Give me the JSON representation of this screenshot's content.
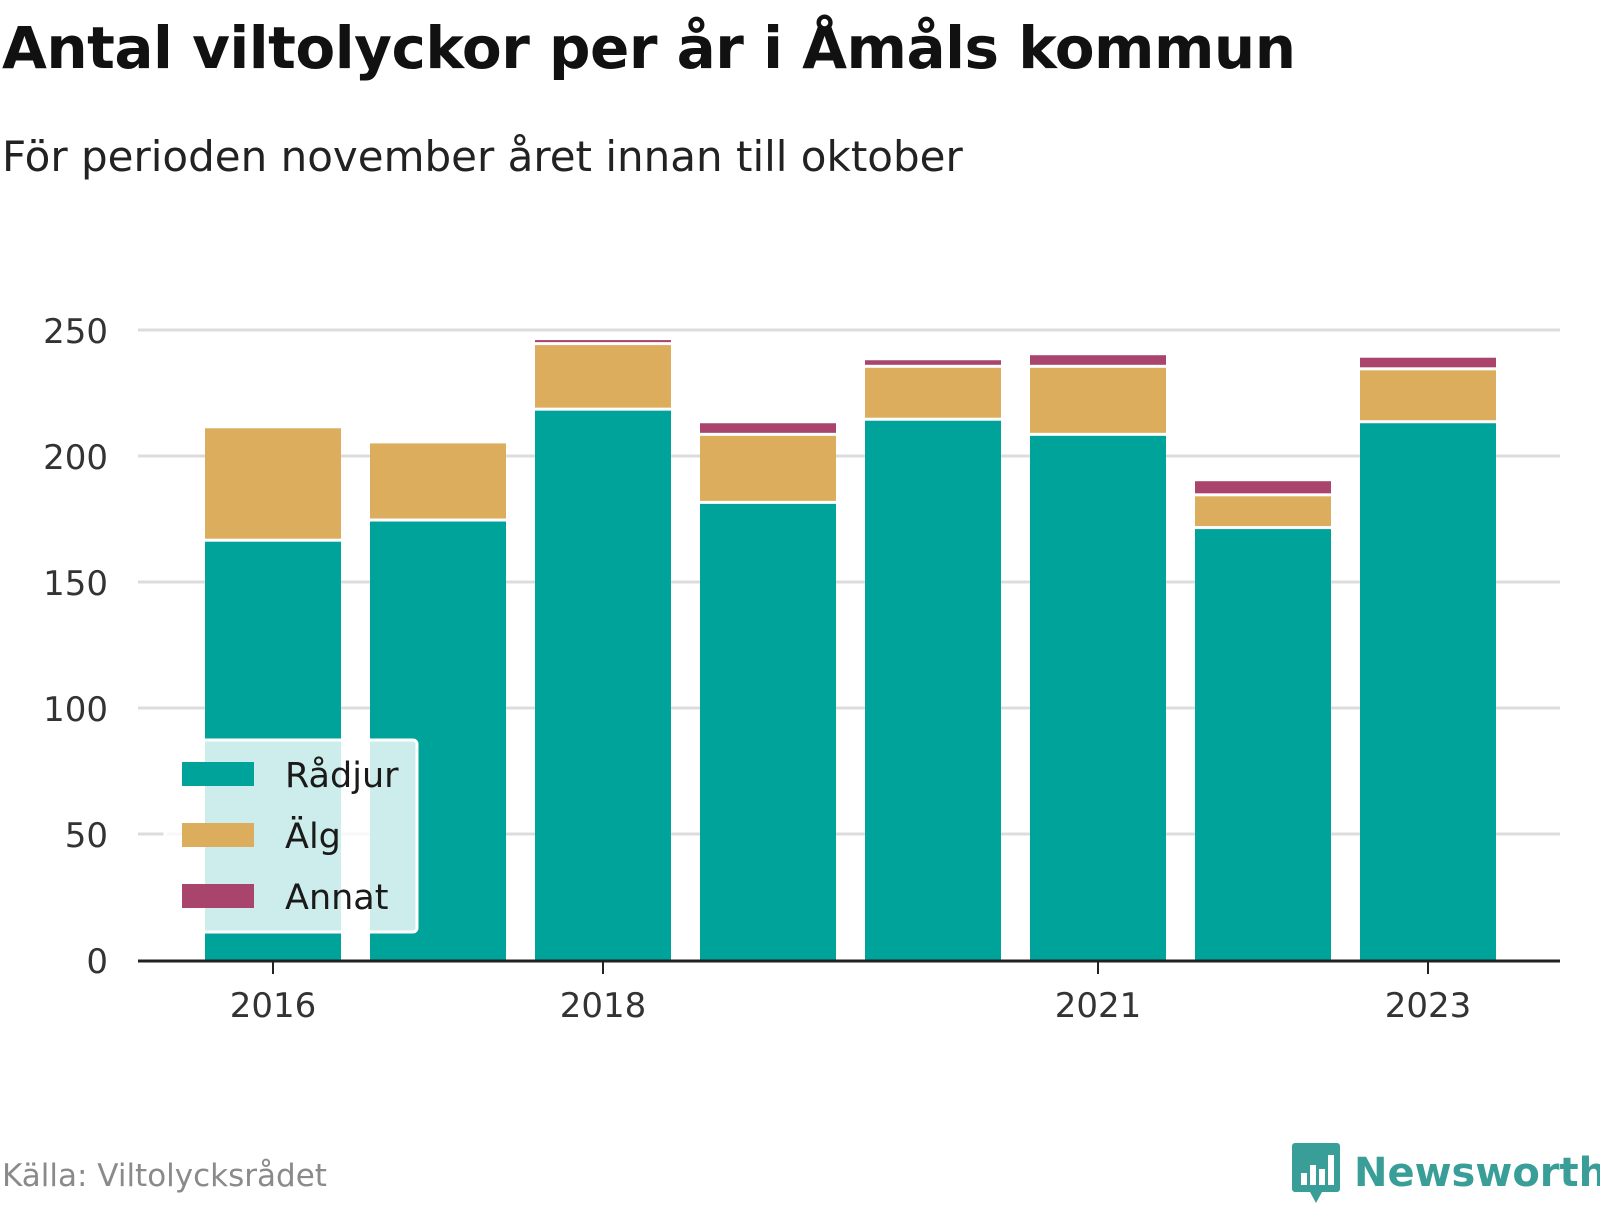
{
  "title": "Antal viltolyckor per år i Åmåls kommun",
  "subtitle": "För perioden november året innan till oktober",
  "source": "Källa: Viltolycksrådet",
  "brand": {
    "name": "Newsworthy",
    "icon": "bar-chart-speech-bubble-icon",
    "color": "#3a9e98"
  },
  "chart_data": {
    "type": "bar",
    "stacked": true,
    "categories": [
      "2016",
      "2017",
      "2018",
      "2019",
      "2020",
      "2021",
      "2022",
      "2023"
    ],
    "x_tick_labels": [
      "2016",
      "2018",
      "2021",
      "2023"
    ],
    "series": [
      {
        "name": "Rådjur",
        "color": "#00a39a",
        "values": [
          166,
          174,
          218,
          181,
          214,
          208,
          171,
          213
        ]
      },
      {
        "name": "Älg",
        "color": "#dbad5c",
        "values": [
          45,
          31,
          26,
          27,
          21,
          27,
          13,
          21
        ]
      },
      {
        "name": "Annat",
        "color": "#a9446c",
        "values": [
          0,
          1,
          2,
          5,
          3,
          5,
          6,
          5
        ]
      }
    ],
    "y_ticks": [
      0,
      50,
      100,
      150,
      200,
      250
    ],
    "ylim": [
      0,
      250
    ],
    "grid": true,
    "legend_position": "bottom-left"
  }
}
